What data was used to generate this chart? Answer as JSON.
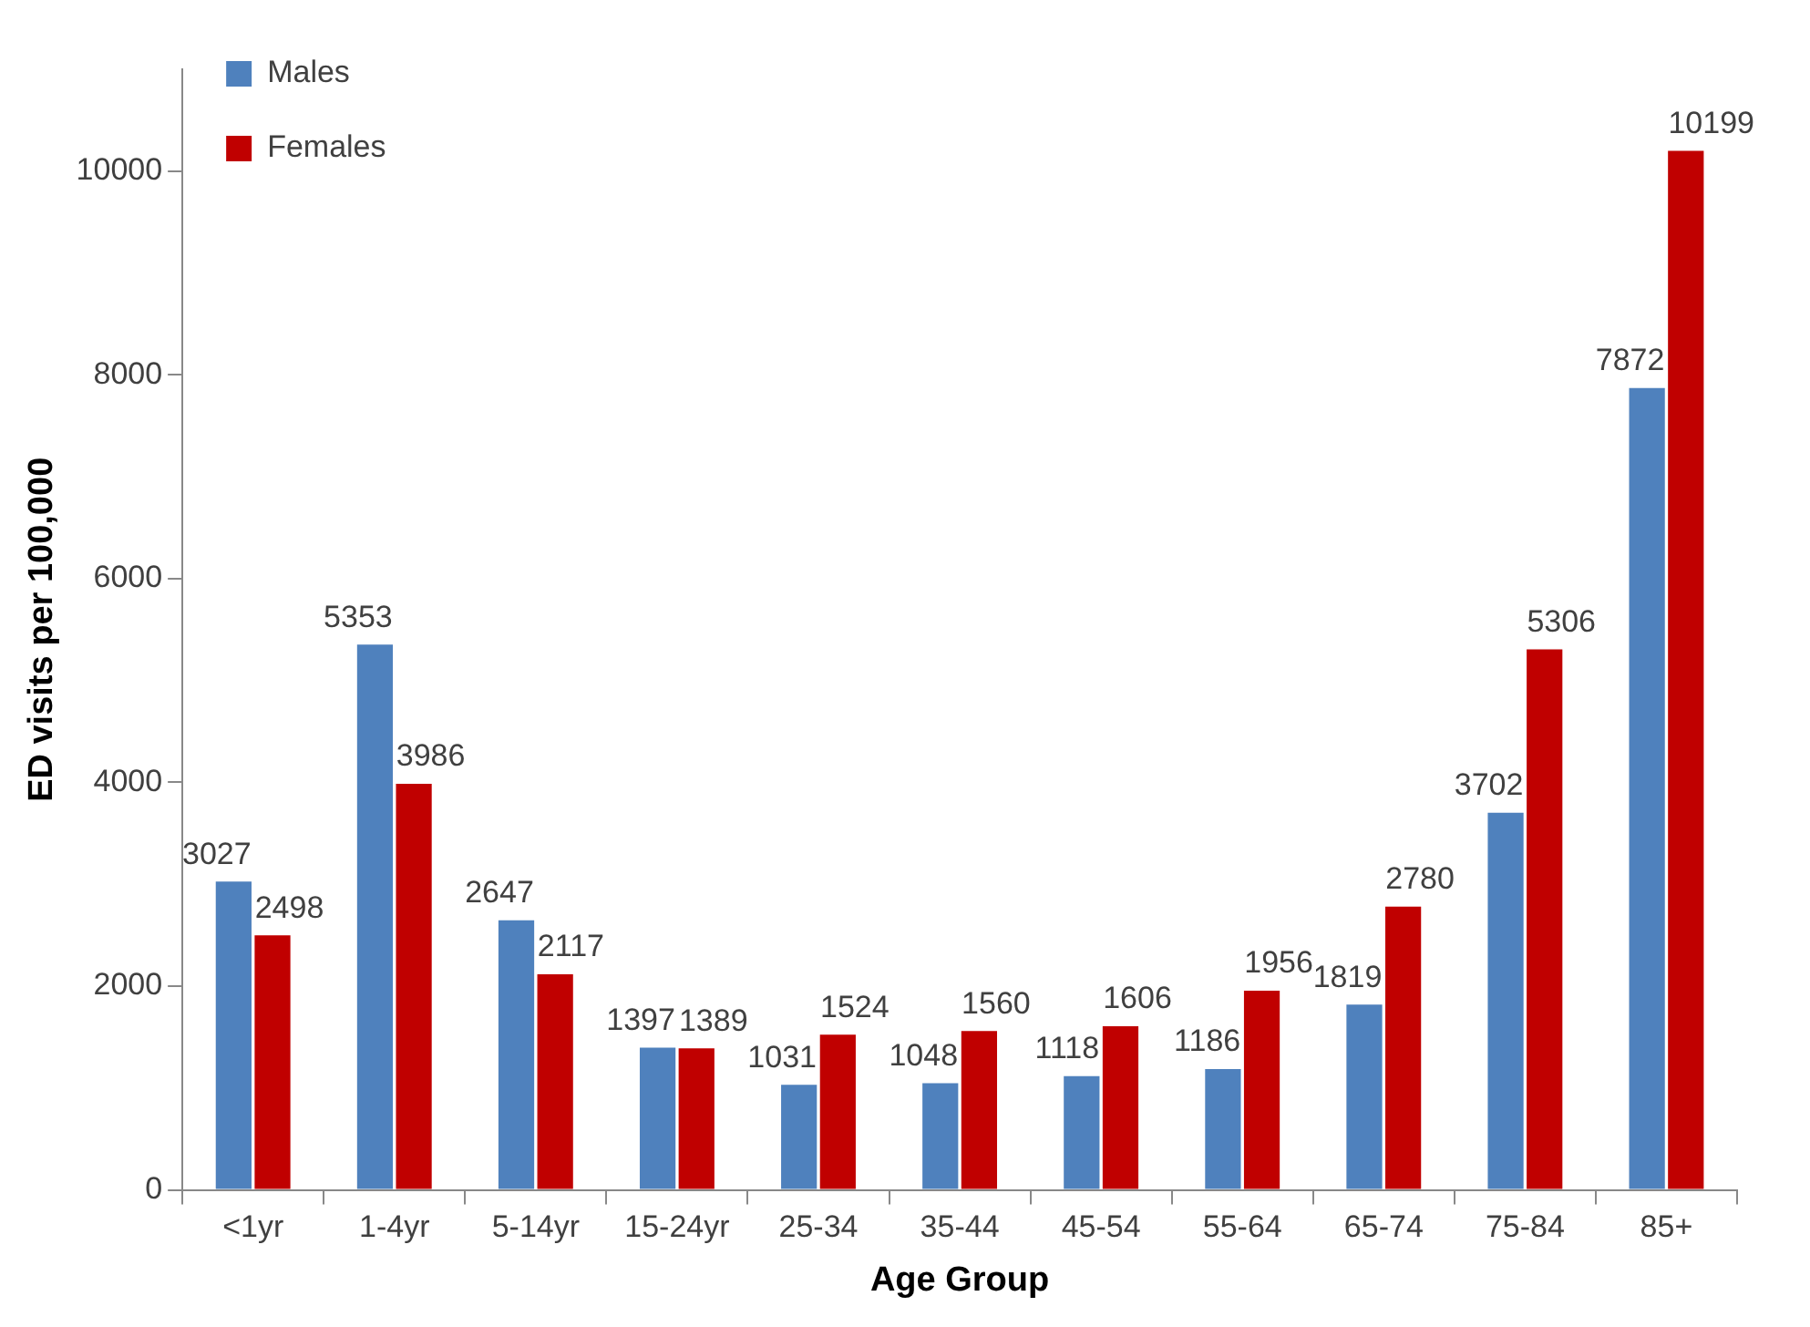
{
  "chart_data": {
    "type": "bar",
    "xlabel": "Age Group",
    "ylabel": "ED visits per 100,000",
    "categories": [
      "<1yr",
      "1-4yr",
      "5-14yr",
      "15-24yr",
      "25-34",
      "35-44",
      "45-54",
      "55-64",
      "65-74",
      "75-84",
      "85+"
    ],
    "series": [
      {
        "name": "Males",
        "color": "#4f81bd",
        "values": [
          3027,
          5353,
          2647,
          1397,
          1031,
          1048,
          1118,
          1186,
          1819,
          3702,
          7872
        ]
      },
      {
        "name": "Females",
        "color": "#c00000",
        "values": [
          2498,
          3986,
          2117,
          1389,
          1524,
          1560,
          1606,
          1956,
          2780,
          5306,
          10199
        ]
      }
    ],
    "ylim": [
      0,
      11000
    ],
    "yticks": [
      0,
      2000,
      4000,
      6000,
      8000,
      10000
    ],
    "grid": false,
    "legend": "top left",
    "data_labels": true
  }
}
